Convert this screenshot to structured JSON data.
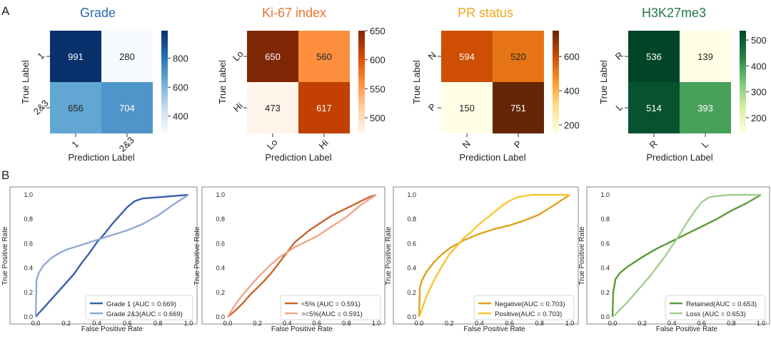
{
  "panel_labels": [
    "A",
    "B"
  ],
  "chart_data": [
    {
      "type": "heatmap",
      "title": "Grade",
      "title_color": "#2b67b0",
      "xlabel": "Prediction Label",
      "ylabel": "True Label",
      "x_ticks": [
        "1",
        "2&3"
      ],
      "y_ticks": [
        "1",
        "2&3"
      ],
      "values": [
        [
          991,
          280
        ],
        [
          656,
          704
        ]
      ],
      "colormap": [
        "#f7fbff",
        "#c6dbef",
        "#6baed6",
        "#2171b5",
        "#08306b"
      ],
      "vmin": 280,
      "vmax": 991,
      "colorbar_ticks": [
        400,
        600,
        800
      ]
    },
    {
      "type": "heatmap",
      "title": "Ki-67 index",
      "title_color": "#e8762c",
      "xlabel": "Prediction Label",
      "ylabel": "True Label",
      "x_ticks": [
        "Lo",
        "Hi"
      ],
      "y_ticks": [
        "Lo",
        "Hi"
      ],
      "values": [
        [
          650,
          560
        ],
        [
          473,
          617
        ]
      ],
      "colormap": [
        "#fff5eb",
        "#fdd0a2",
        "#fd8d3c",
        "#d94801",
        "#7f2704"
      ],
      "vmin": 473,
      "vmax": 650,
      "colorbar_ticks": [
        500,
        550,
        600,
        650
      ]
    },
    {
      "type": "heatmap",
      "title": "PR status",
      "title_color": "#f0a61c",
      "xlabel": "Prediction Label",
      "ylabel": "True Label",
      "x_ticks": [
        "N",
        "P"
      ],
      "y_ticks": [
        "N",
        "P"
      ],
      "values": [
        [
          594,
          520
        ],
        [
          150,
          751
        ]
      ],
      "colormap": [
        "#ffffe5",
        "#fee391",
        "#fe9929",
        "#cc4c02",
        "#662506"
      ],
      "vmin": 150,
      "vmax": 751,
      "colorbar_ticks": [
        200,
        400,
        600
      ]
    },
    {
      "type": "heatmap",
      "title": "H3K27me3",
      "title_color": "#1f7a44",
      "xlabel": "Prediction Label",
      "ylabel": "True Label",
      "x_ticks": [
        "R",
        "L"
      ],
      "y_ticks": [
        "R",
        "L"
      ],
      "values": [
        [
          536,
          139
        ],
        [
          514,
          393
        ]
      ],
      "colormap": [
        "#ffffe5",
        "#d9f0a3",
        "#78c679",
        "#238443",
        "#004529"
      ],
      "vmin": 139,
      "vmax": 536,
      "colorbar_ticks": [
        200,
        300,
        400,
        500
      ]
    },
    {
      "type": "line",
      "xlabel": "False Positive Rate",
      "ylabel": "True Positive Rate",
      "xlim": [
        0,
        1
      ],
      "ylim": [
        0,
        1
      ],
      "ticks": [
        "0.0",
        "0.2",
        "0.4",
        "0.6",
        "0.8",
        "1.0"
      ],
      "legend_position": "lower-right",
      "series": [
        {
          "name": "Grade 1  (AUC = 0.669)",
          "color": "#3a5fad",
          "x": [
            0,
            0.02,
            0.05,
            0.1,
            0.15,
            0.2,
            0.25,
            0.3,
            0.35,
            0.4,
            0.45,
            0.5,
            0.55,
            0.6,
            0.65,
            0.7,
            0.8,
            0.9,
            1.0
          ],
          "y": [
            0,
            0.03,
            0.07,
            0.14,
            0.21,
            0.28,
            0.35,
            0.44,
            0.52,
            0.61,
            0.68,
            0.76,
            0.83,
            0.9,
            0.95,
            0.97,
            0.98,
            0.99,
            1.0
          ]
        },
        {
          "name": "Grade 2&3(AUC = 0.669)",
          "color": "#93a8d8",
          "x": [
            0,
            0.005,
            0.02,
            0.05,
            0.1,
            0.15,
            0.2,
            0.3,
            0.4,
            0.5,
            0.6,
            0.7,
            0.8,
            0.9,
            1.0
          ],
          "y": [
            0,
            0.3,
            0.36,
            0.42,
            0.48,
            0.52,
            0.55,
            0.59,
            0.63,
            0.67,
            0.71,
            0.76,
            0.83,
            0.92,
            1.0
          ]
        }
      ]
    },
    {
      "type": "line",
      "xlabel": "False Positive Rate",
      "ylabel": "True Positive Rate",
      "xlim": [
        0,
        1
      ],
      "ylim": [
        0,
        1
      ],
      "ticks": [
        "0.0",
        "0.2",
        "0.4",
        "0.6",
        "0.8",
        "1.0"
      ],
      "legend_position": "lower-right",
      "series": [
        {
          "name": "<5% (AUC = 0.591)",
          "color": "#c9652c",
          "x": [
            0,
            0.05,
            0.1,
            0.15,
            0.2,
            0.25,
            0.3,
            0.35,
            0.4,
            0.45,
            0.5,
            0.55,
            0.6,
            0.65,
            0.7,
            0.75,
            0.8,
            0.85,
            0.9,
            0.95,
            1.0
          ],
          "y": [
            0,
            0.05,
            0.11,
            0.18,
            0.24,
            0.3,
            0.37,
            0.45,
            0.53,
            0.61,
            0.66,
            0.71,
            0.75,
            0.79,
            0.83,
            0.86,
            0.89,
            0.92,
            0.95,
            0.98,
            1.0
          ]
        },
        {
          "name": ">=5%(AUC = 0.591)",
          "color": "#f0a68c",
          "x": [
            0,
            0.05,
            0.1,
            0.15,
            0.2,
            0.25,
            0.3,
            0.35,
            0.4,
            0.45,
            0.5,
            0.55,
            0.6,
            0.65,
            0.7,
            0.75,
            0.8,
            0.85,
            0.9,
            0.95,
            1.0
          ],
          "y": [
            0,
            0.1,
            0.18,
            0.25,
            0.32,
            0.38,
            0.44,
            0.49,
            0.53,
            0.57,
            0.6,
            0.63,
            0.66,
            0.7,
            0.74,
            0.78,
            0.82,
            0.87,
            0.92,
            0.96,
            1.0
          ]
        }
      ]
    },
    {
      "type": "line",
      "xlabel": "False Positive Rate",
      "ylabel": "True Positive Rate",
      "xlim": [
        0,
        1
      ],
      "ylim": [
        0,
        1
      ],
      "ticks": [
        "0.0",
        "0.2",
        "0.4",
        "0.6",
        "0.8",
        "1.0"
      ],
      "legend_position": "lower-right",
      "series": [
        {
          "name": "Negative(AUC = 0.703)",
          "color": "#dfa11d",
          "x": [
            0,
            0.005,
            0.02,
            0.05,
            0.1,
            0.15,
            0.2,
            0.3,
            0.4,
            0.5,
            0.6,
            0.7,
            0.8,
            0.9,
            1.0
          ],
          "y": [
            0,
            0.24,
            0.3,
            0.37,
            0.45,
            0.51,
            0.56,
            0.63,
            0.68,
            0.72,
            0.75,
            0.79,
            0.84,
            0.92,
            1.0
          ]
        },
        {
          "name": "Positive(AUC = 0.703)",
          "color": "#f7c531",
          "x": [
            0,
            0.01,
            0.03,
            0.05,
            0.1,
            0.15,
            0.2,
            0.25,
            0.3,
            0.35,
            0.4,
            0.45,
            0.5,
            0.55,
            0.6,
            0.65,
            0.7,
            0.75,
            0.8,
            1.0
          ],
          "y": [
            0,
            0.03,
            0.1,
            0.17,
            0.3,
            0.41,
            0.51,
            0.58,
            0.65,
            0.7,
            0.76,
            0.81,
            0.86,
            0.91,
            0.95,
            0.98,
            0.99,
            1.0,
            1.0,
            1.0
          ]
        }
      ]
    },
    {
      "type": "line",
      "xlabel": "False Positive Rate",
      "ylabel": "True Positive Rate",
      "xlim": [
        0,
        1
      ],
      "ylim": [
        0,
        1
      ],
      "ticks": [
        "0.0",
        "0.2",
        "0.4",
        "0.6",
        "0.8",
        "1.0"
      ],
      "legend_position": "lower-right",
      "series": [
        {
          "name": "Retained(AUC = 0.653)",
          "color": "#5a9a3a",
          "x": [
            0,
            0.005,
            0.02,
            0.05,
            0.1,
            0.15,
            0.2,
            0.3,
            0.4,
            0.5,
            0.6,
            0.7,
            0.8,
            0.9,
            1.0
          ],
          "y": [
            0,
            0.2,
            0.31,
            0.36,
            0.41,
            0.45,
            0.49,
            0.56,
            0.62,
            0.68,
            0.74,
            0.8,
            0.87,
            0.93,
            1.0
          ]
        },
        {
          "name": "Loss     (AUC = 0.653)",
          "color": "#a3cd8f",
          "x": [
            0,
            0.02,
            0.05,
            0.1,
            0.15,
            0.2,
            0.25,
            0.3,
            0.35,
            0.4,
            0.45,
            0.5,
            0.55,
            0.6,
            0.65,
            0.7,
            0.8,
            0.9,
            1.0
          ],
          "y": [
            0,
            0.02,
            0.06,
            0.12,
            0.19,
            0.26,
            0.33,
            0.41,
            0.49,
            0.58,
            0.67,
            0.77,
            0.86,
            0.94,
            0.98,
            0.99,
            1.0,
            1.0,
            1.0
          ]
        }
      ]
    }
  ]
}
